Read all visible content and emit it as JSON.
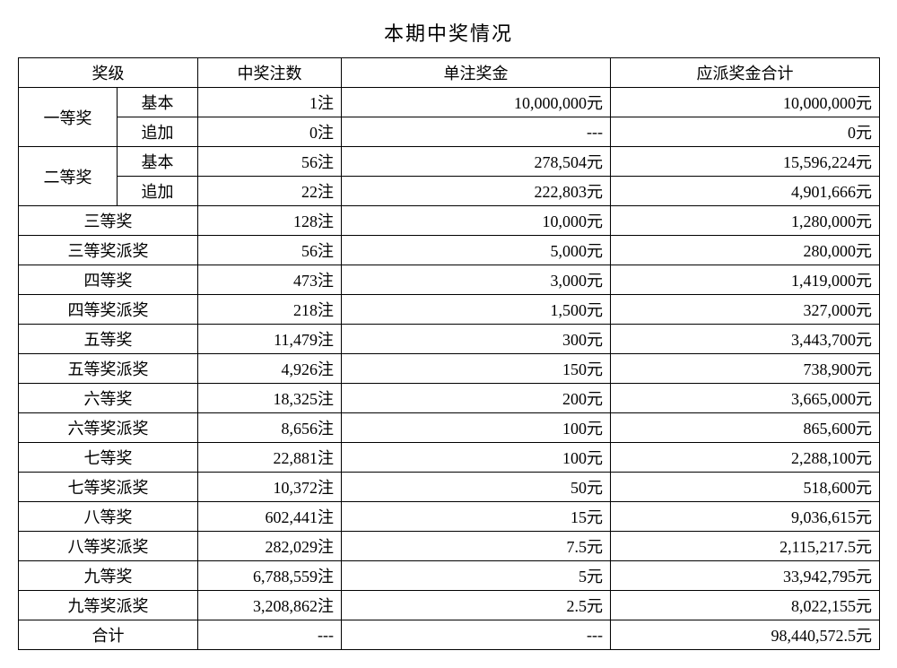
{
  "title": "本期中奖情况",
  "headers": {
    "level": "奖级",
    "count": "中奖注数",
    "unit": "单注奖金",
    "total": "应派奖金合计"
  },
  "groups": [
    {
      "name": "一等奖",
      "subs": [
        {
          "sub": "基本",
          "count": "1注",
          "unit": "10,000,000元",
          "total": "10,000,000元"
        },
        {
          "sub": "追加",
          "count": "0注",
          "unit": "---",
          "total": "0元"
        }
      ]
    },
    {
      "name": "二等奖",
      "subs": [
        {
          "sub": "基本",
          "count": "56注",
          "unit": "278,504元",
          "total": "15,596,224元"
        },
        {
          "sub": "追加",
          "count": "22注",
          "unit": "222,803元",
          "total": "4,901,666元"
        }
      ]
    }
  ],
  "rows": [
    {
      "name": "三等奖",
      "count": "128注",
      "unit": "10,000元",
      "total": "1,280,000元"
    },
    {
      "name": "三等奖派奖",
      "count": "56注",
      "unit": "5,000元",
      "total": "280,000元"
    },
    {
      "name": "四等奖",
      "count": "473注",
      "unit": "3,000元",
      "total": "1,419,000元"
    },
    {
      "name": "四等奖派奖",
      "count": "218注",
      "unit": "1,500元",
      "total": "327,000元"
    },
    {
      "name": "五等奖",
      "count": "11,479注",
      "unit": "300元",
      "total": "3,443,700元"
    },
    {
      "name": "五等奖派奖",
      "count": "4,926注",
      "unit": "150元",
      "total": "738,900元"
    },
    {
      "name": "六等奖",
      "count": "18,325注",
      "unit": "200元",
      "total": "3,665,000元"
    },
    {
      "name": "六等奖派奖",
      "count": "8,656注",
      "unit": "100元",
      "total": "865,600元"
    },
    {
      "name": "七等奖",
      "count": "22,881注",
      "unit": "100元",
      "total": "2,288,100元"
    },
    {
      "name": "七等奖派奖",
      "count": "10,372注",
      "unit": "50元",
      "total": "518,600元"
    },
    {
      "name": "八等奖",
      "count": "602,441注",
      "unit": "15元",
      "total": "9,036,615元"
    },
    {
      "name": "八等奖派奖",
      "count": "282,029注",
      "unit": "7.5元",
      "total": "2,115,217.5元"
    },
    {
      "name": "九等奖",
      "count": "6,788,559注",
      "unit": "5元",
      "total": "33,942,795元"
    },
    {
      "name": "九等奖派奖",
      "count": "3,208,862注",
      "unit": "2.5元",
      "total": "8,022,155元"
    }
  ],
  "sum": {
    "name": "合计",
    "count": "---",
    "unit": "---",
    "total": "98,440,572.5元"
  }
}
